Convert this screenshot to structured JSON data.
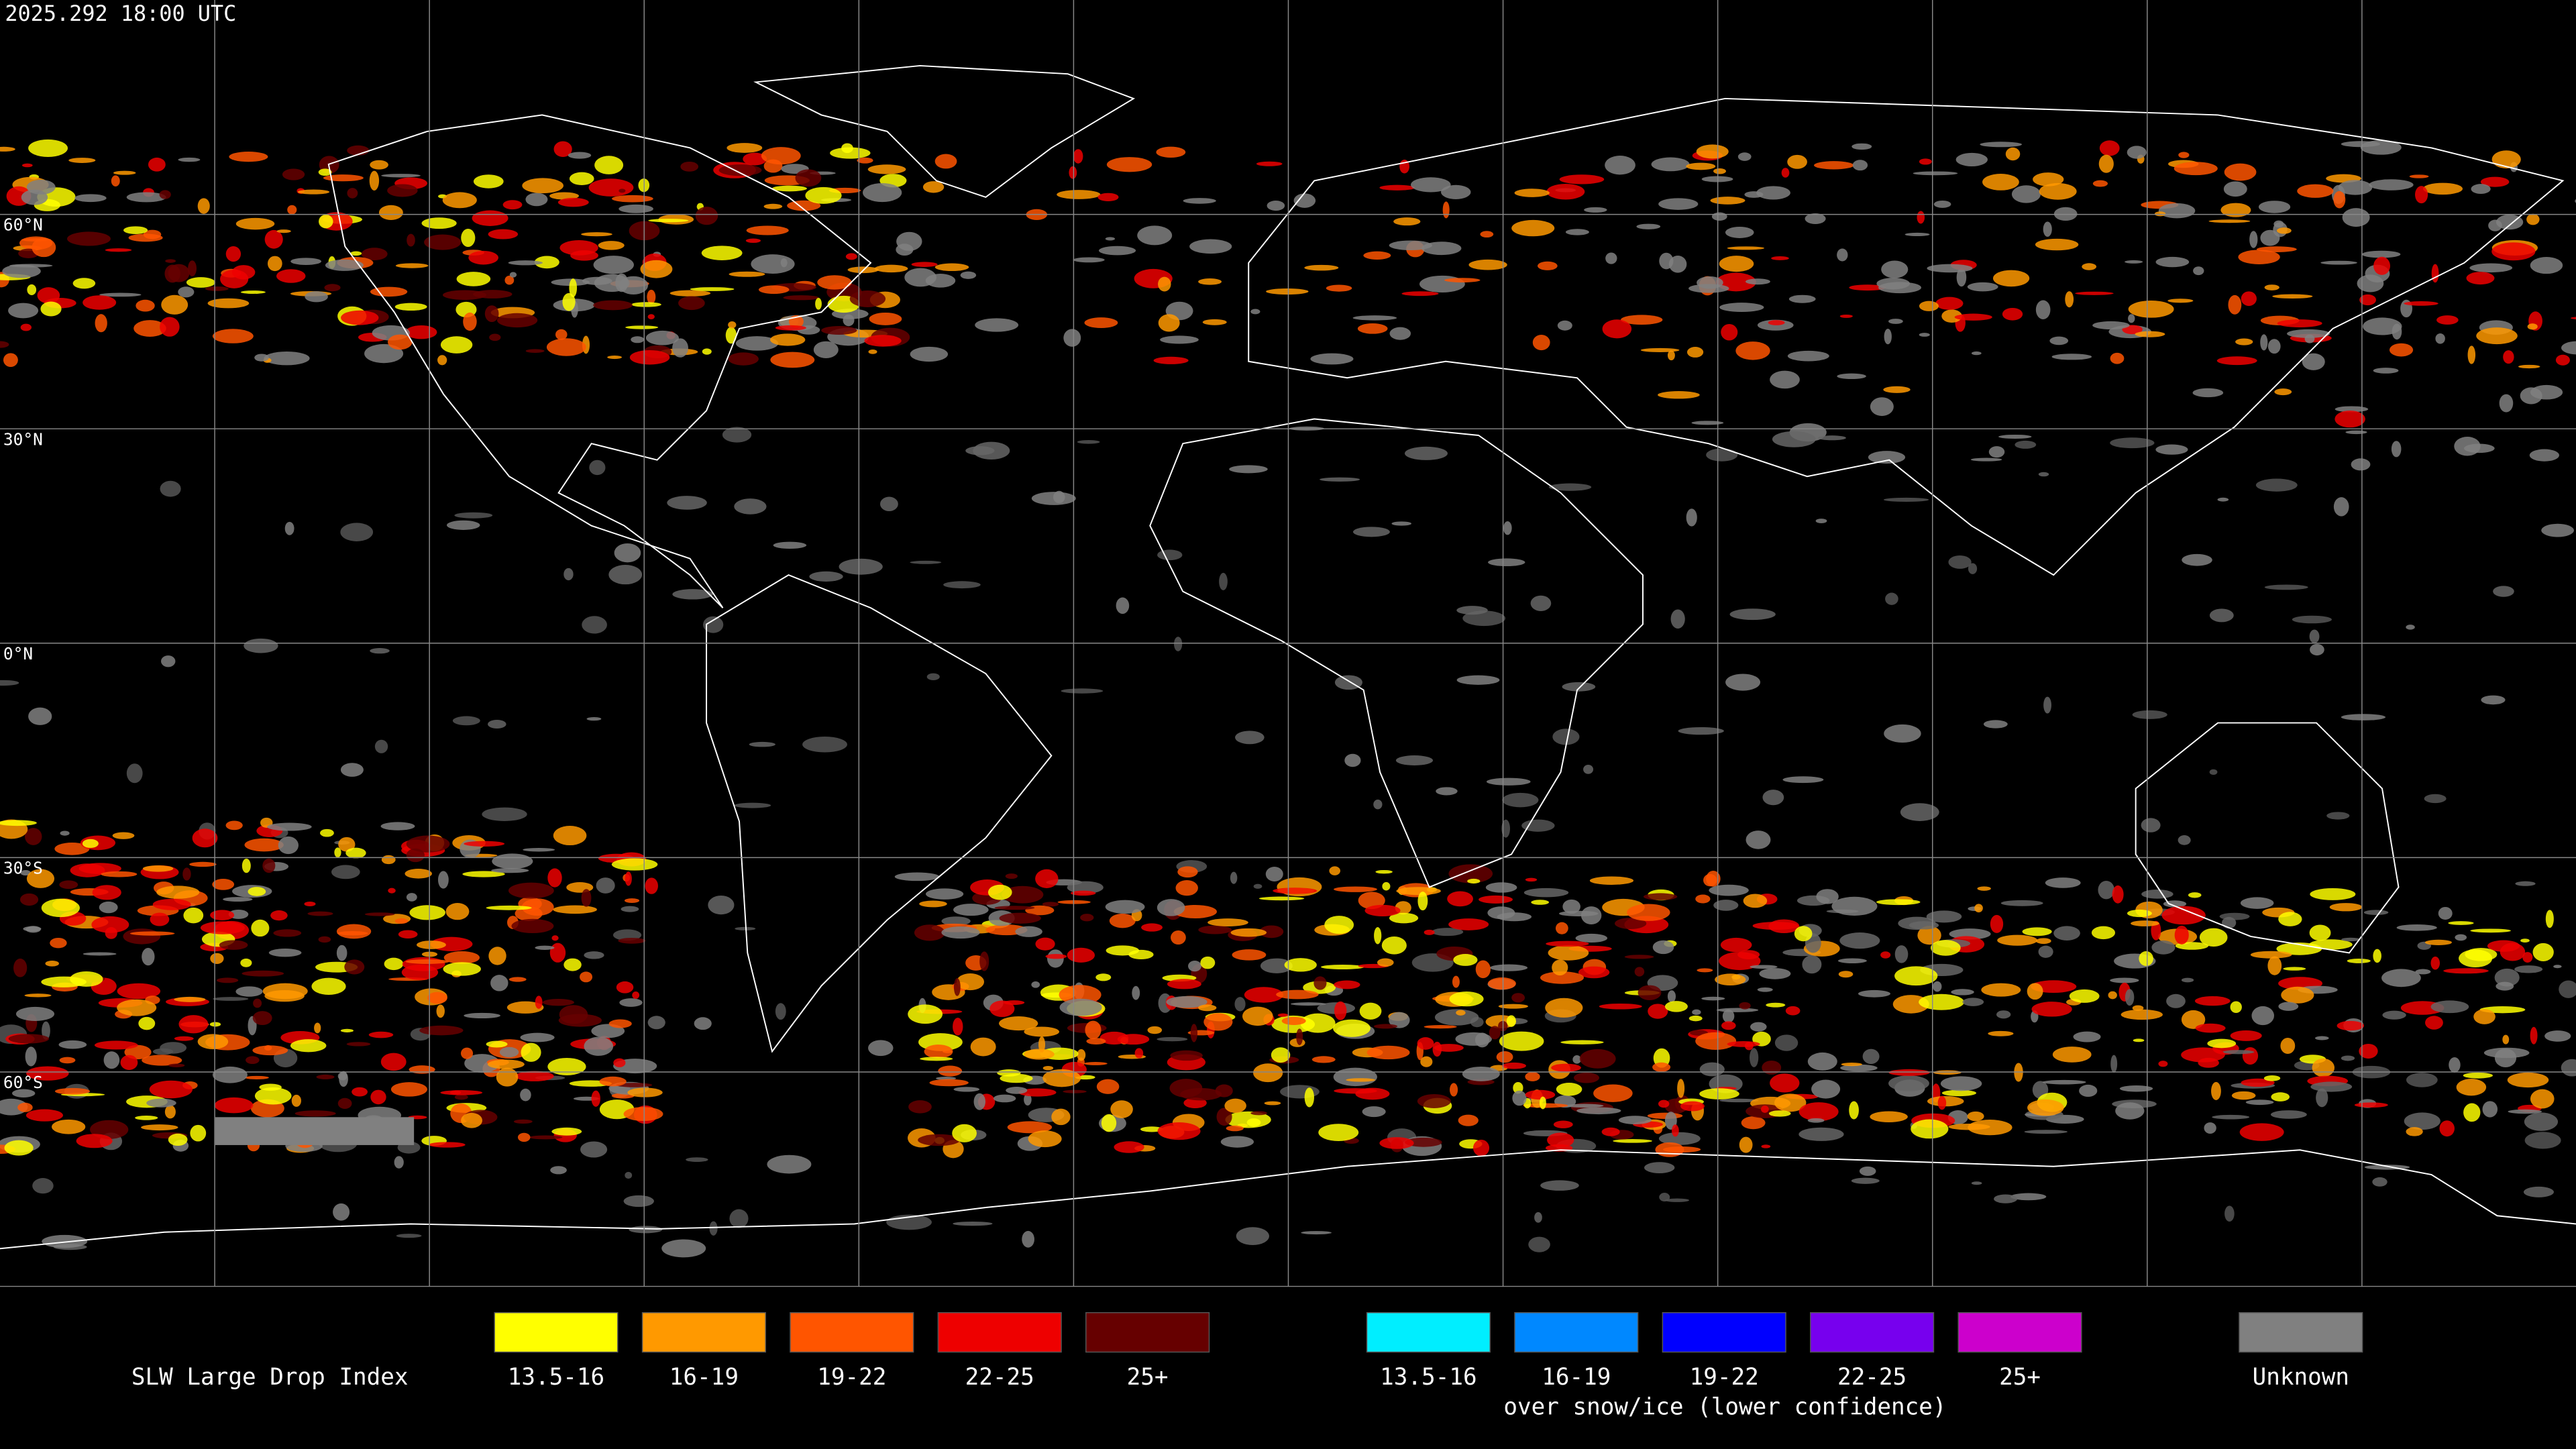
{
  "header": {
    "timestamp": "2025.292 18:00 UTC"
  },
  "map": {
    "latitude_labels": [
      "60°N",
      "30°N",
      "0°N",
      "30°S",
      "60°S"
    ]
  },
  "legend": {
    "title": "SLW Large Drop Index",
    "liquid": [
      {
        "label": "13.5-16",
        "color": "#ffff00"
      },
      {
        "label": "16-19",
        "color": "#ff9900"
      },
      {
        "label": "19-22",
        "color": "#ff5500"
      },
      {
        "label": "22-25",
        "color": "#ee0000"
      },
      {
        "label": "25+",
        "color": "#660000"
      }
    ],
    "snow_ice": [
      {
        "label": "13.5-16",
        "color": "#00eeff"
      },
      {
        "label": "16-19",
        "color": "#0088ff"
      },
      {
        "label": "19-22",
        "color": "#0000ff"
      },
      {
        "label": "22-25",
        "color": "#7700ee"
      },
      {
        "label": "25+",
        "color": "#cc00cc"
      }
    ],
    "snow_ice_note": "over snow/ice (lower confidence)",
    "unknown": {
      "label": "Unknown",
      "color": "#808080"
    }
  }
}
